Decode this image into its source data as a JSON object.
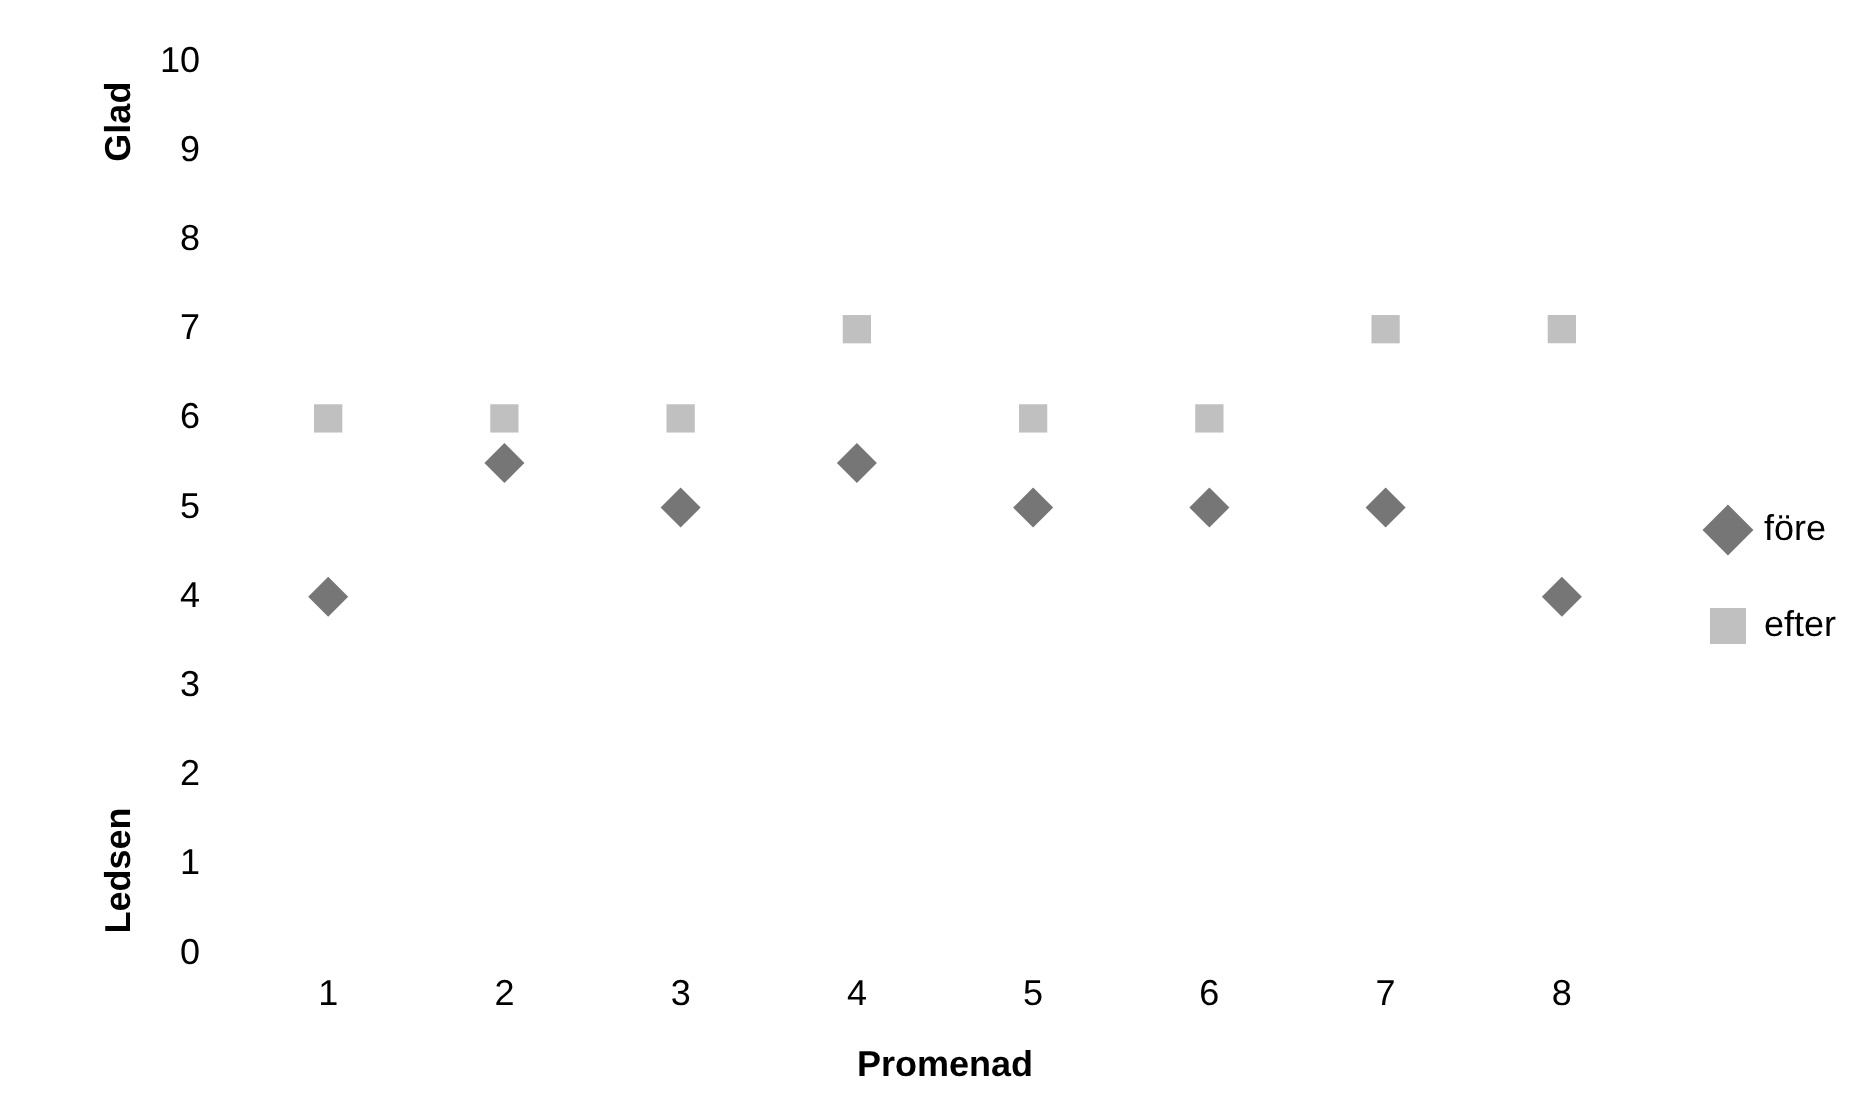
{
  "chart_data": {
    "type": "scatter",
    "xlabel": "Promenad",
    "annotations": [
      "Glad",
      "Ledsen"
    ],
    "categories": [
      "1",
      "2",
      "3",
      "4",
      "5",
      "6",
      "7",
      "8"
    ],
    "series": [
      {
        "name": "före",
        "color": "#767676",
        "marker": "diamond",
        "values": [
          4,
          5.5,
          5,
          5.5,
          5,
          5,
          5,
          4
        ]
      },
      {
        "name": "efter",
        "color": "#c0c0c0",
        "marker": "square",
        "values": [
          6,
          6,
          6,
          7,
          6,
          6,
          7,
          7
        ]
      }
    ],
    "ylim": [
      0,
      10
    ],
    "yticks": [
      0,
      1,
      2,
      3,
      4,
      5,
      6,
      7,
      8,
      9,
      10
    ],
    "grid": false,
    "legend": "right"
  }
}
